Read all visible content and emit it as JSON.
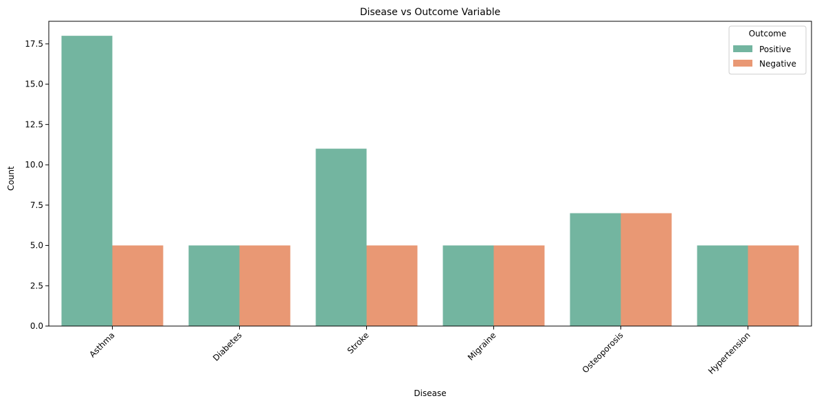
{
  "chart_data": {
    "type": "bar",
    "title": "Disease vs Outcome Variable",
    "xlabel": "Disease",
    "ylabel": "Count",
    "categories": [
      "Asthma",
      "Diabetes",
      "Stroke",
      "Migraine",
      "Osteoporosis",
      "Hypertension"
    ],
    "series": [
      {
        "name": "Positive",
        "values": [
          18,
          5,
          11,
          5,
          7,
          5
        ],
        "color": "#73b5a0"
      },
      {
        "name": "Negative",
        "values": [
          5,
          5,
          5,
          5,
          7,
          5
        ],
        "color": "#e99874"
      }
    ],
    "ylim": [
      0,
      18.9
    ],
    "yticks": [
      "0.0",
      "2.5",
      "5.0",
      "7.5",
      "10.0",
      "12.5",
      "15.0",
      "17.5"
    ],
    "xtick_rotation": 45,
    "grid": false,
    "legend": {
      "title": "Outcome",
      "placement": "top-right"
    }
  }
}
